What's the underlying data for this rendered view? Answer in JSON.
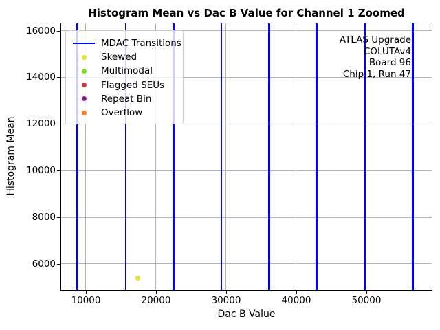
{
  "window": {
    "title": "Histogram Mean vs Dac B Value for Channel 1 Zoomed"
  },
  "chart_data": {
    "type": "scatter",
    "title": "Histogram Mean vs Dac B Value for Channel 1 Zoomed",
    "xlabel": "Dac B Value",
    "ylabel": "Histogram Mean",
    "xlim": [
      6471,
      59314
    ],
    "ylim": [
      4879,
      16310
    ],
    "x_ticks": [
      10000,
      20000,
      30000,
      40000,
      50000
    ],
    "y_ticks": [
      6000,
      8000,
      10000,
      12000,
      14000,
      16000
    ],
    "grid": true,
    "grid_color": "#b4b4b4",
    "vlines": {
      "label": "MDAC Transitions",
      "color": "#0000ff",
      "x": [
        8775,
        15685,
        22495,
        29335,
        36140,
        42900,
        49790,
        56620
      ]
    },
    "series": [
      {
        "name": "Skewed",
        "color": "#e7e234",
        "points": [
          [
            17450,
            5400
          ]
        ]
      },
      {
        "name": "Multimodal",
        "color": "#7edd2d",
        "points": []
      },
      {
        "name": "Flagged SEUs",
        "color": "#cd3838",
        "points": []
      },
      {
        "name": "Repeat Bin",
        "color": "#8c1a8c",
        "points": []
      },
      {
        "name": "Overflow",
        "color": "#f58228",
        "points": []
      }
    ],
    "legend_position": "upper left",
    "annotation": {
      "align": "right",
      "lines": [
        "ATLAS Upgrade",
        "COLUTAv4",
        "Board 96",
        "Chip 1, Run 47"
      ]
    }
  }
}
